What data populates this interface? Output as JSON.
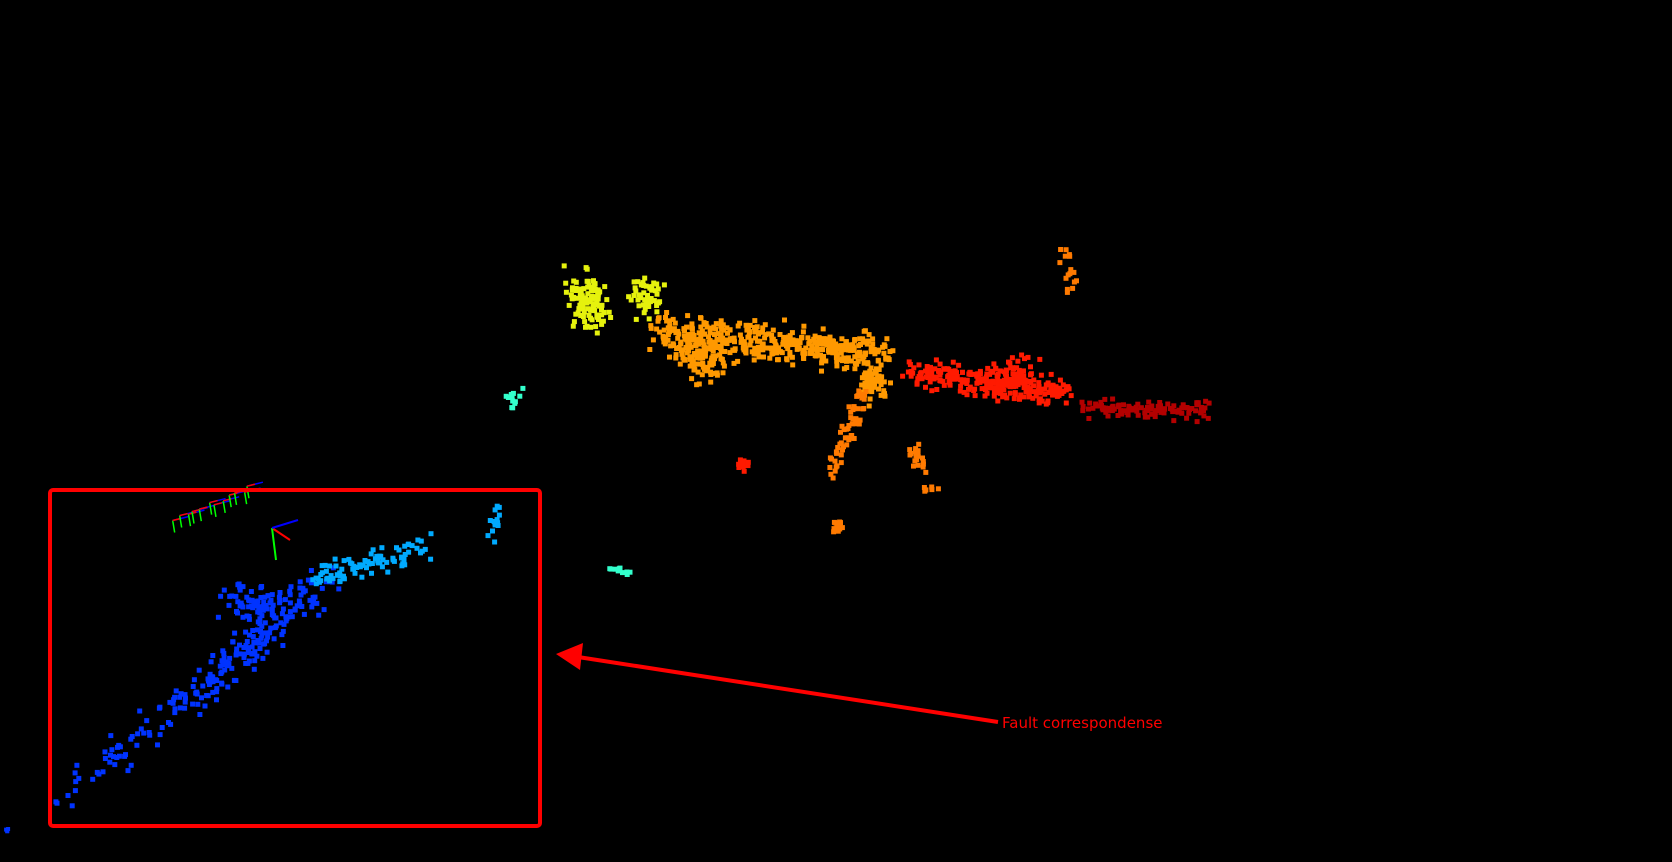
{
  "scene": {
    "background_color": "#000000"
  },
  "annotation": {
    "label": "Fault correspondense",
    "color": "#ff0000"
  },
  "point_clouds": [
    {
      "name": "tail-cluster-yellow",
      "color": "#e6f20d"
    },
    {
      "name": "main-body-orange",
      "color": "#ff9900"
    },
    {
      "name": "right-wing-red",
      "color": "#ff1a00"
    },
    {
      "name": "far-right-dark-red",
      "color": "#b30000"
    },
    {
      "name": "lower-branch-orange",
      "color": "#ff7a00"
    },
    {
      "name": "isolated-cyan",
      "color": "#33ffcc"
    },
    {
      "name": "boxed-blue-streak",
      "color": "#0033ff"
    },
    {
      "name": "boxed-light-blue",
      "color": "#00aaff"
    }
  ],
  "axis_colors": {
    "x": "#ff0000",
    "y": "#00ff00",
    "z": "#0000ff"
  }
}
